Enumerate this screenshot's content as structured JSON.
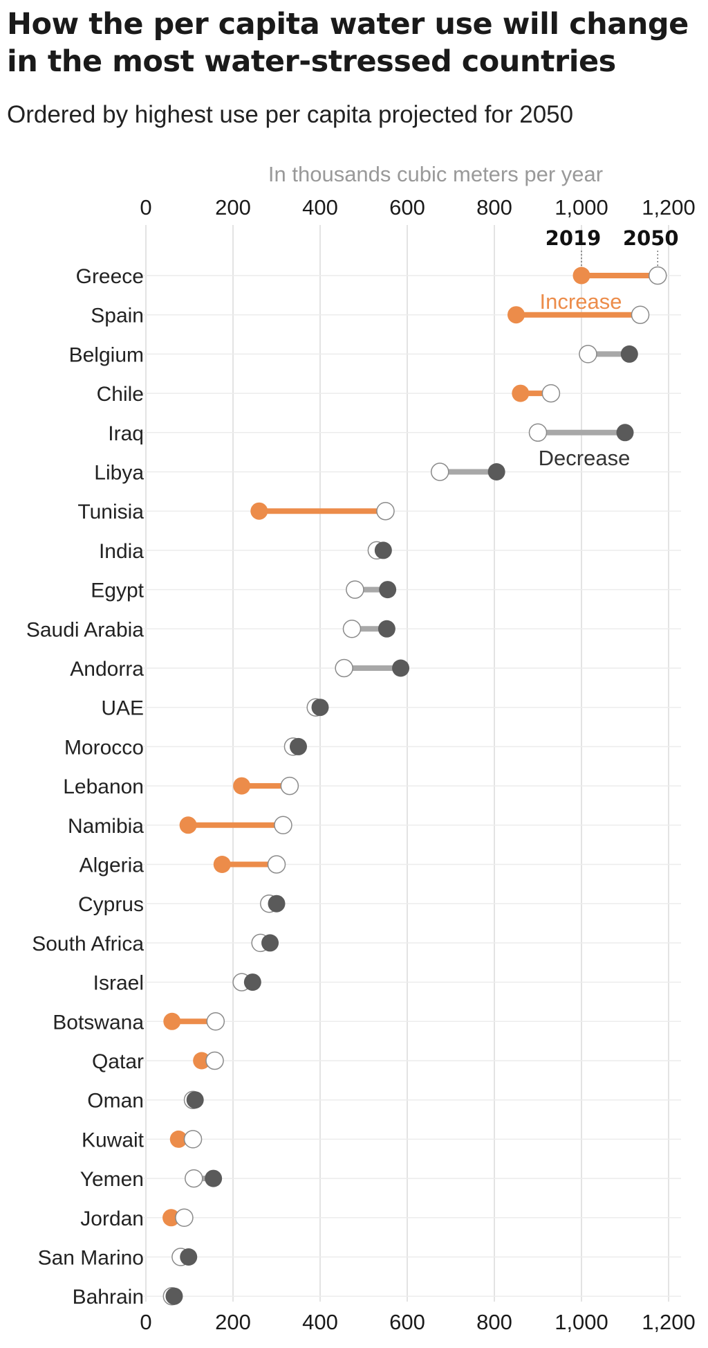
{
  "title": "How the per capita water use will change in the most water-stressed countries",
  "subtitle": "Ordered by highest use per capita projected for 2050",
  "chart_data": {
    "type": "dumbbell",
    "unit_label": "In thousands cubic meters per year",
    "xlim": [
      0,
      1200
    ],
    "x_ticks": [
      0,
      200,
      400,
      600,
      800,
      1000,
      1200
    ],
    "x_tick_labels": [
      "0",
      "200",
      "400",
      "600",
      "800",
      "1,000",
      "1,200"
    ],
    "grid": true,
    "year_labels": {
      "start": "2019",
      "end": "2050"
    },
    "annotations": {
      "increase": "Increase",
      "decrease": "Decrease"
    },
    "colors": {
      "increase_dot": "#ec8c4a",
      "increase_bar": "#ec8c4a",
      "decrease_dot": "#5a5a5a",
      "decrease_bar": "#a8a8a8",
      "end_dot_fill": "#ffffff",
      "end_dot_stroke": "#8a8a8a",
      "gridline": "#e3e3e3",
      "row_line": "#ececec",
      "unit_label": "#999999"
    },
    "rows": [
      {
        "country": "Greece",
        "v2019": 1000,
        "v2050": 1175
      },
      {
        "country": "Spain",
        "v2019": 850,
        "v2050": 1135
      },
      {
        "country": "Belgium",
        "v2019": 1110,
        "v2050": 1015
      },
      {
        "country": "Chile",
        "v2019": 860,
        "v2050": 930
      },
      {
        "country": "Iraq",
        "v2019": 1100,
        "v2050": 900
      },
      {
        "country": "Libya",
        "v2019": 805,
        "v2050": 675
      },
      {
        "country": "Tunisia",
        "v2019": 260,
        "v2050": 550
      },
      {
        "country": "India",
        "v2019": 545,
        "v2050": 530
      },
      {
        "country": "Egypt",
        "v2019": 555,
        "v2050": 480
      },
      {
        "country": "Saudi Arabia",
        "v2019": 553,
        "v2050": 473
      },
      {
        "country": "Andorra",
        "v2019": 585,
        "v2050": 455
      },
      {
        "country": "UAE",
        "v2019": 400,
        "v2050": 390
      },
      {
        "country": "Morocco",
        "v2019": 350,
        "v2050": 338
      },
      {
        "country": "Lebanon",
        "v2019": 220,
        "v2050": 330
      },
      {
        "country": "Namibia",
        "v2019": 97,
        "v2050": 315
      },
      {
        "country": "Algeria",
        "v2019": 175,
        "v2050": 300
      },
      {
        "country": "Cyprus",
        "v2019": 300,
        "v2050": 283
      },
      {
        "country": "South Africa",
        "v2019": 285,
        "v2050": 263
      },
      {
        "country": "Israel",
        "v2019": 245,
        "v2050": 220
      },
      {
        "country": "Botswana",
        "v2019": 60,
        "v2050": 160
      },
      {
        "country": "Qatar",
        "v2019": 128,
        "v2050": 158
      },
      {
        "country": "Oman",
        "v2019": 113,
        "v2050": 108
      },
      {
        "country": "Kuwait",
        "v2019": 75,
        "v2050": 108
      },
      {
        "country": "Yemen",
        "v2019": 155,
        "v2050": 110
      },
      {
        "country": "Jordan",
        "v2019": 58,
        "v2050": 88
      },
      {
        "country": "San Marino",
        "v2019": 98,
        "v2050": 80
      },
      {
        "country": "Bahrain",
        "v2019": 65,
        "v2050": 60
      }
    ]
  }
}
